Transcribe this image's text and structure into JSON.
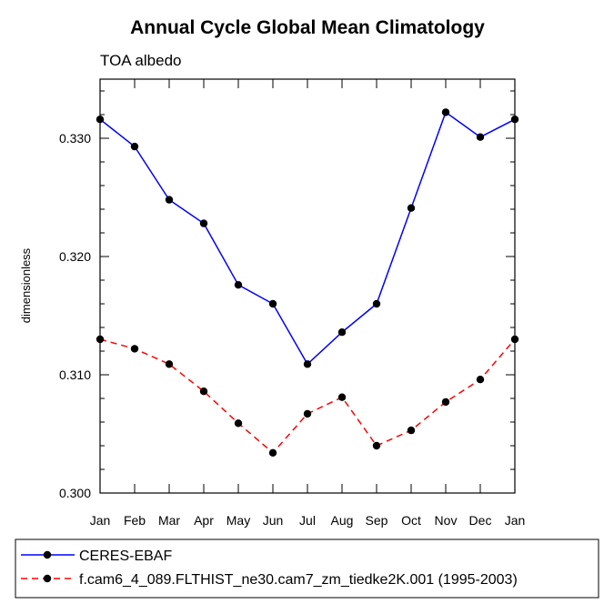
{
  "chart_data": {
    "type": "line",
    "title": "Annual Cycle Global Mean Climatology",
    "subtitle": "TOA albedo",
    "xlabel": "",
    "ylabel": "dimensionless",
    "categories": [
      "Jan",
      "Feb",
      "Mar",
      "Apr",
      "May",
      "Jun",
      "Jul",
      "Aug",
      "Sep",
      "Oct",
      "Nov",
      "Dec",
      "Jan"
    ],
    "ylim": [
      0.3,
      0.335
    ],
    "y_ticks": [
      0.3,
      0.31,
      0.32,
      0.33
    ],
    "y_tick_labels": [
      "0.300",
      "0.310",
      "0.320",
      "0.330"
    ],
    "series": [
      {
        "name": "CERES-EBAF",
        "color": "#0000ff",
        "dash": "solid",
        "values": [
          0.3316,
          0.3293,
          0.3248,
          0.3228,
          0.3176,
          0.316,
          0.3109,
          0.3136,
          0.316,
          0.3241,
          0.3322,
          0.3301,
          0.3316
        ]
      },
      {
        "name": "f.cam6_4_089.FLTHIST_ne30.cam7_zm_tiedke2K.001 (1995-2003)",
        "color": "#ff0000",
        "dash": "dashed",
        "values": [
          0.313,
          0.3122,
          0.3109,
          0.3086,
          0.3059,
          0.3034,
          0.3067,
          0.3081,
          0.304,
          0.3053,
          0.3077,
          0.3096,
          0.313
        ]
      }
    ],
    "grid": false,
    "legend_position": "bottom"
  }
}
